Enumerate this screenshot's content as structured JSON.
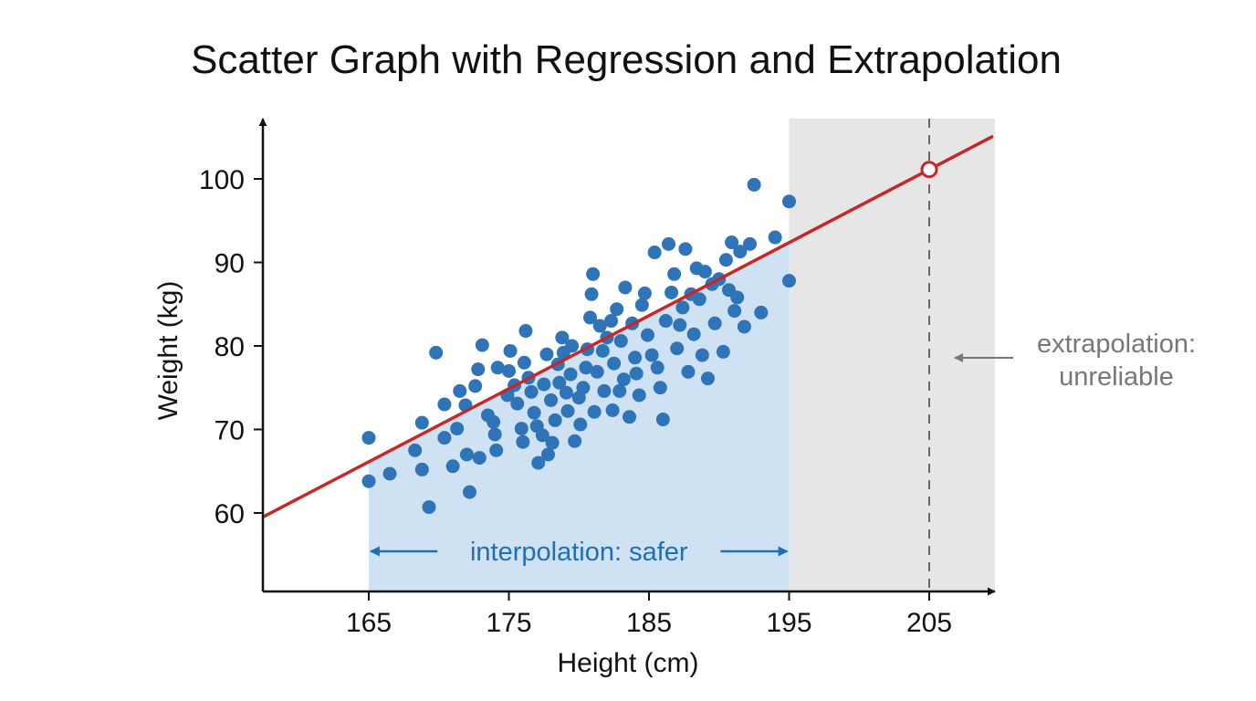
{
  "chart_data": {
    "type": "scatter",
    "title": "Scatter Graph with Regression and Extrapolation",
    "xlabel": "Height (cm)",
    "ylabel": "Weight (kg)",
    "xlim": [
      158,
      210
    ],
    "ylim": [
      50,
      106
    ],
    "x_ticks": [
      "165",
      "175",
      "185",
      "195",
      "205"
    ],
    "y_ticks": [
      "60",
      "70",
      "80",
      "90",
      "100"
    ],
    "grid": false,
    "regression": {
      "slope": 0.875,
      "intercept": -78.25,
      "color": "#c62828"
    },
    "interpolation_region": {
      "x_range": [
        165,
        195
      ],
      "label": "interpolation: safer",
      "color": "#1f6fb5",
      "fill": "#cfe2f3"
    },
    "extrapolation_region": {
      "x_range": [
        195,
        210
      ],
      "label_lines": [
        "extrapolation:",
        "unreliable"
      ],
      "fill": "#e6e6e6",
      "text_color": "#777777"
    },
    "extrapolated_point": {
      "x": 205,
      "y": 101.1
    },
    "point_color": "#2f73b8",
    "points": [
      {
        "x": 165.0,
        "y": 69.0
      },
      {
        "x": 165.0,
        "y": 63.8
      },
      {
        "x": 166.5,
        "y": 64.7
      },
      {
        "x": 168.3,
        "y": 67.5
      },
      {
        "x": 168.8,
        "y": 70.8
      },
      {
        "x": 168.8,
        "y": 65.2
      },
      {
        "x": 169.3,
        "y": 60.7
      },
      {
        "x": 169.8,
        "y": 79.2
      },
      {
        "x": 170.4,
        "y": 73.0
      },
      {
        "x": 170.4,
        "y": 69.0
      },
      {
        "x": 171.0,
        "y": 65.6
      },
      {
        "x": 171.3,
        "y": 70.1
      },
      {
        "x": 171.5,
        "y": 74.6
      },
      {
        "x": 171.9,
        "y": 72.9
      },
      {
        "x": 172.0,
        "y": 67.0
      },
      {
        "x": 172.2,
        "y": 62.5
      },
      {
        "x": 172.6,
        "y": 75.2
      },
      {
        "x": 172.8,
        "y": 77.2
      },
      {
        "x": 172.9,
        "y": 66.6
      },
      {
        "x": 173.1,
        "y": 80.1
      },
      {
        "x": 173.5,
        "y": 71.7
      },
      {
        "x": 173.9,
        "y": 70.9
      },
      {
        "x": 174.0,
        "y": 69.4
      },
      {
        "x": 174.1,
        "y": 67.5
      },
      {
        "x": 174.2,
        "y": 77.4
      },
      {
        "x": 174.9,
        "y": 74.1
      },
      {
        "x": 175.0,
        "y": 77.0
      },
      {
        "x": 175.1,
        "y": 79.4
      },
      {
        "x": 175.4,
        "y": 75.3
      },
      {
        "x": 175.6,
        "y": 73.1
      },
      {
        "x": 175.9,
        "y": 70.1
      },
      {
        "x": 176.0,
        "y": 68.5
      },
      {
        "x": 176.1,
        "y": 78.0
      },
      {
        "x": 176.2,
        "y": 81.8
      },
      {
        "x": 176.4,
        "y": 76.2
      },
      {
        "x": 176.6,
        "y": 74.5
      },
      {
        "x": 176.8,
        "y": 72.0
      },
      {
        "x": 177.0,
        "y": 70.4
      },
      {
        "x": 177.1,
        "y": 66.0
      },
      {
        "x": 177.4,
        "y": 69.3
      },
      {
        "x": 177.5,
        "y": 75.4
      },
      {
        "x": 177.7,
        "y": 79.0
      },
      {
        "x": 177.8,
        "y": 67.0
      },
      {
        "x": 178.0,
        "y": 73.5
      },
      {
        "x": 178.1,
        "y": 68.4
      },
      {
        "x": 178.3,
        "y": 71.1
      },
      {
        "x": 178.5,
        "y": 77.8
      },
      {
        "x": 178.6,
        "y": 75.6
      },
      {
        "x": 178.8,
        "y": 81.0
      },
      {
        "x": 178.9,
        "y": 79.2
      },
      {
        "x": 179.1,
        "y": 74.4
      },
      {
        "x": 179.2,
        "y": 72.2
      },
      {
        "x": 179.4,
        "y": 76.6
      },
      {
        "x": 179.5,
        "y": 80.0
      },
      {
        "x": 179.7,
        "y": 68.6
      },
      {
        "x": 180.0,
        "y": 73.8
      },
      {
        "x": 180.1,
        "y": 70.6
      },
      {
        "x": 180.3,
        "y": 75.0
      },
      {
        "x": 180.5,
        "y": 77.4
      },
      {
        "x": 180.6,
        "y": 79.6
      },
      {
        "x": 180.8,
        "y": 83.4
      },
      {
        "x": 180.9,
        "y": 86.2
      },
      {
        "x": 181.0,
        "y": 88.6
      },
      {
        "x": 181.1,
        "y": 72.1
      },
      {
        "x": 181.3,
        "y": 76.9
      },
      {
        "x": 181.5,
        "y": 82.4
      },
      {
        "x": 181.7,
        "y": 79.4
      },
      {
        "x": 181.8,
        "y": 74.6
      },
      {
        "x": 182.0,
        "y": 81.0
      },
      {
        "x": 182.3,
        "y": 83.0
      },
      {
        "x": 182.4,
        "y": 72.3
      },
      {
        "x": 182.5,
        "y": 77.9
      },
      {
        "x": 182.7,
        "y": 84.4
      },
      {
        "x": 182.9,
        "y": 74.6
      },
      {
        "x": 183.0,
        "y": 80.6
      },
      {
        "x": 183.2,
        "y": 76.0
      },
      {
        "x": 183.3,
        "y": 87.0
      },
      {
        "x": 183.6,
        "y": 71.5
      },
      {
        "x": 183.8,
        "y": 82.7
      },
      {
        "x": 184.0,
        "y": 78.6
      },
      {
        "x": 184.1,
        "y": 76.7
      },
      {
        "x": 184.3,
        "y": 74.1
      },
      {
        "x": 184.5,
        "y": 84.9
      },
      {
        "x": 184.7,
        "y": 86.3
      },
      {
        "x": 184.9,
        "y": 81.3
      },
      {
        "x": 185.2,
        "y": 78.9
      },
      {
        "x": 185.4,
        "y": 91.2
      },
      {
        "x": 185.6,
        "y": 77.4
      },
      {
        "x": 185.8,
        "y": 75.0
      },
      {
        "x": 186.0,
        "y": 71.2
      },
      {
        "x": 186.2,
        "y": 83.0
      },
      {
        "x": 186.4,
        "y": 92.2
      },
      {
        "x": 186.6,
        "y": 86.4
      },
      {
        "x": 186.8,
        "y": 88.6
      },
      {
        "x": 187.0,
        "y": 79.7
      },
      {
        "x": 187.2,
        "y": 82.5
      },
      {
        "x": 187.4,
        "y": 84.6
      },
      {
        "x": 187.6,
        "y": 91.6
      },
      {
        "x": 187.8,
        "y": 76.9
      },
      {
        "x": 188.0,
        "y": 86.2
      },
      {
        "x": 188.2,
        "y": 81.4
      },
      {
        "x": 188.4,
        "y": 89.3
      },
      {
        "x": 188.6,
        "y": 85.6
      },
      {
        "x": 188.8,
        "y": 78.9
      },
      {
        "x": 189.0,
        "y": 88.9
      },
      {
        "x": 189.2,
        "y": 76.1
      },
      {
        "x": 189.5,
        "y": 87.4
      },
      {
        "x": 189.7,
        "y": 82.7
      },
      {
        "x": 190.0,
        "y": 88.0
      },
      {
        "x": 190.3,
        "y": 79.3
      },
      {
        "x": 190.5,
        "y": 90.3
      },
      {
        "x": 190.7,
        "y": 86.7
      },
      {
        "x": 190.9,
        "y": 92.4
      },
      {
        "x": 191.1,
        "y": 84.2
      },
      {
        "x": 191.3,
        "y": 85.8
      },
      {
        "x": 191.5,
        "y": 91.3
      },
      {
        "x": 191.8,
        "y": 82.3
      },
      {
        "x": 192.2,
        "y": 92.2
      },
      {
        "x": 192.5,
        "y": 99.3
      },
      {
        "x": 193.0,
        "y": 84.0
      },
      {
        "x": 194.0,
        "y": 93.0
      },
      {
        "x": 195.0,
        "y": 97.3
      },
      {
        "x": 195.0,
        "y": 87.8
      }
    ]
  }
}
